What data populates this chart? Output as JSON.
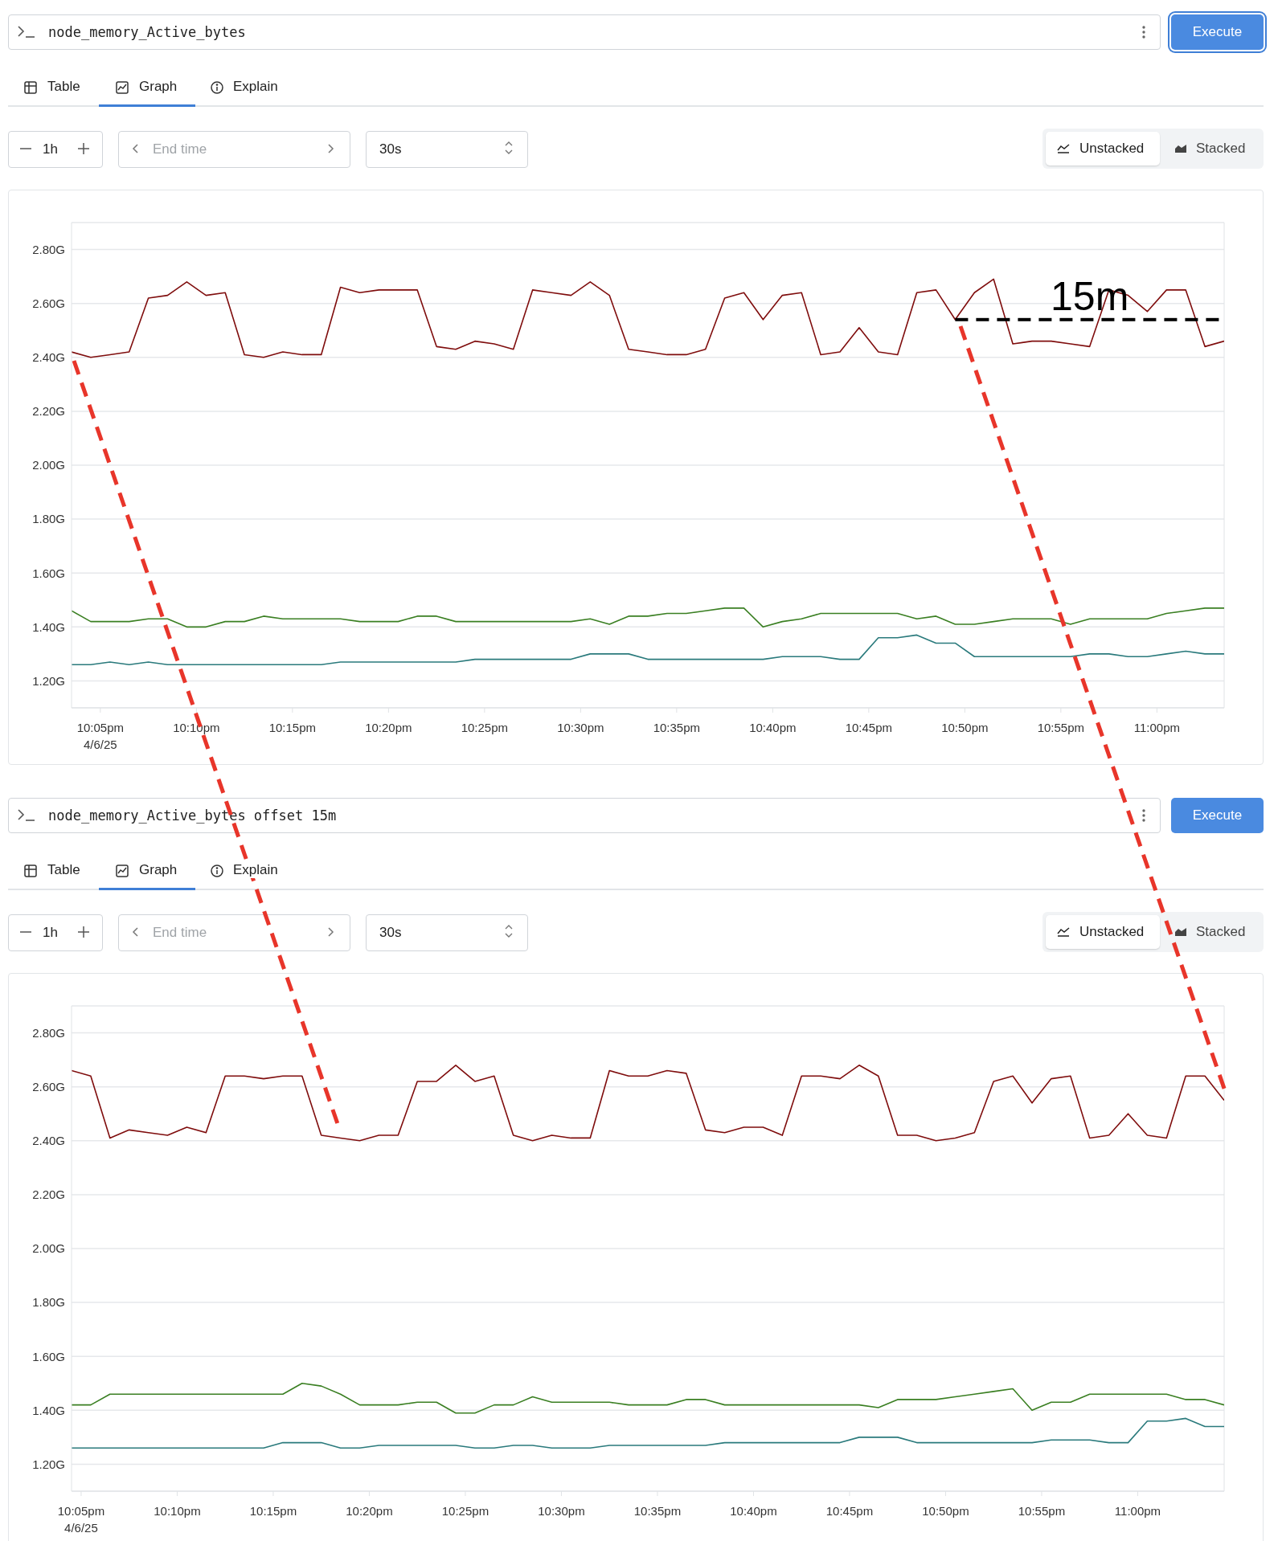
{
  "chart_data": [
    {
      "type": "line",
      "grid": "y",
      "line_style": "solid",
      "annotations": [
        "node_memory_Active_bytes",
        "Execute",
        "Table",
        "Graph",
        "Explain",
        "1h",
        "End time",
        "30s",
        "Unstacked",
        "Stacked",
        {
          "text": "15m",
          "x": "--04-06T22:49:30",
          "y": 2.54
        }
      ],
      "x": [
        "--04-06T22:03:30",
        "--04-06T22:04:30",
        "--04-06T22:05:30",
        "--04-06T22:06:30",
        "--04-06T22:07:30",
        "--04-06T22:08:30",
        "--04-06T22:09:30",
        "--04-06T22:10:30",
        "--04-06T22:11:30",
        "--04-06T22:12:30",
        "--04-06T22:13:30",
        "--04-06T22:14:30",
        "--04-06T22:15:30",
        "--04-06T22:16:30",
        "--04-06T22:17:30",
        "--04-06T22:18:30",
        "--04-06T22:19:30",
        "--04-06T22:20:30",
        "--04-06T22:21:30",
        "--04-06T22:22:30",
        "--04-06T22:23:30",
        "--04-06T22:24:30",
        "--04-06T22:25:30",
        "--04-06T22:26:30",
        "--04-06T22:27:30",
        "--04-06T22:28:30",
        "--04-06T22:29:30",
        "--04-06T22:30:30",
        "--04-06T22:31:30",
        "--04-06T22:32:30",
        "--04-06T22:33:30",
        "--04-06T22:34:30",
        "--04-06T22:35:30",
        "--04-06T22:36:30",
        "--04-06T22:37:30",
        "--04-06T22:38:30",
        "--04-06T22:39:30",
        "--04-06T22:40:30",
        "--04-06T22:41:30",
        "--04-06T22:42:30",
        "--04-06T22:43:30",
        "--04-06T22:44:30",
        "--04-06T22:45:30",
        "--04-06T22:46:30",
        "--04-06T22:47:30",
        "--04-06T22:48:30",
        "--04-06T22:49:30",
        "--04-06T22:50:30",
        "--04-06T22:51:30",
        "--04-06T22:52:30",
        "--04-06T22:53:30",
        "--04-06T22:54:30",
        "--04-06T22:55:30",
        "--04-06T22:56:30",
        "--04-06T22:57:30",
        "--04-06T22:58:30",
        "--04-06T22:59:30",
        "--04-06T23:00:30",
        "--04-06T23:01:30",
        "--04-06T23:02:30",
        "--04-06T23:03:30"
      ],
      "series": [
        {
          "color": "#7f0d0d",
          "values": [
            2.42,
            2.4,
            2.41,
            2.42,
            2.62,
            2.63,
            2.68,
            2.63,
            2.64,
            2.41,
            2.4,
            2.42,
            2.41,
            2.41,
            2.66,
            2.64,
            2.65,
            2.65,
            2.65,
            2.44,
            2.43,
            2.46,
            2.45,
            2.43,
            2.65,
            2.64,
            2.63,
            2.68,
            2.63,
            2.43,
            2.42,
            2.41,
            2.41,
            2.43,
            2.62,
            2.64,
            2.54,
            2.63,
            2.64,
            2.41,
            2.42,
            2.51,
            2.42,
            2.41,
            2.64,
            2.65,
            2.54,
            2.64,
            2.69,
            2.45,
            2.46,
            2.46,
            2.45,
            2.44,
            2.65,
            2.63,
            2.57,
            2.65,
            2.65,
            2.44,
            2.46
          ]
        },
        {
          "color": "#3a7f22",
          "values": [
            1.46,
            1.42,
            1.42,
            1.42,
            1.43,
            1.43,
            1.4,
            1.4,
            1.42,
            1.42,
            1.44,
            1.43,
            1.43,
            1.43,
            1.43,
            1.42,
            1.42,
            1.42,
            1.44,
            1.44,
            1.42,
            1.42,
            1.42,
            1.42,
            1.42,
            1.42,
            1.42,
            1.43,
            1.41,
            1.44,
            1.44,
            1.45,
            1.45,
            1.46,
            1.47,
            1.47,
            1.4,
            1.42,
            1.43,
            1.45,
            1.45,
            1.45,
            1.45,
            1.45,
            1.43,
            1.44,
            1.41,
            1.41,
            1.42,
            1.43,
            1.43,
            1.43,
            1.41,
            1.43,
            1.43,
            1.43,
            1.43,
            1.45,
            1.46,
            1.47,
            1.47
          ]
        },
        {
          "color": "#2a7a7c",
          "values": [
            1.26,
            1.26,
            1.27,
            1.26,
            1.27,
            1.26,
            1.26,
            1.26,
            1.26,
            1.26,
            1.26,
            1.26,
            1.26,
            1.26,
            1.27,
            1.27,
            1.27,
            1.27,
            1.27,
            1.27,
            1.27,
            1.28,
            1.28,
            1.28,
            1.28,
            1.28,
            1.28,
            1.3,
            1.3,
            1.3,
            1.28,
            1.28,
            1.28,
            1.28,
            1.28,
            1.28,
            1.28,
            1.29,
            1.29,
            1.29,
            1.28,
            1.28,
            1.36,
            1.36,
            1.37,
            1.34,
            1.34,
            1.29,
            1.29,
            1.29,
            1.29,
            1.29,
            1.29,
            1.3,
            1.3,
            1.29,
            1.29,
            1.3,
            1.31,
            1.3,
            1.3
          ]
        }
      ],
      "xlim": [
        "--04-06T22:03:30",
        "--04-06T23:03:30"
      ],
      "xticks": [
        {
          "value": "--04-06T22:05",
          "label": "10:05pm\n4/6/25"
        },
        {
          "value": "--04-06T22:10",
          "label": "10:10pm"
        },
        {
          "value": "--04-06T22:15",
          "label": "10:15pm"
        },
        {
          "value": "--04-06T22:20",
          "label": "10:20pm"
        },
        {
          "value": "--04-06T22:25",
          "label": "10:25pm"
        },
        {
          "value": "--04-06T22:30",
          "label": "10:30pm"
        },
        {
          "value": "--04-06T22:35",
          "label": "10:35pm"
        },
        {
          "value": "--04-06T22:40",
          "label": "10:40pm"
        },
        {
          "value": "--04-06T22:45",
          "label": "10:45pm"
        },
        {
          "value": "--04-06T22:50",
          "label": "10:50pm"
        },
        {
          "value": "--04-06T22:55",
          "label": "10:55pm"
        },
        {
          "value": "--04-06T23:00",
          "label": "11:00pm"
        }
      ],
      "ylim": [
        1.1,
        2.9
      ],
      "yticks": [
        {
          "value": 1.2,
          "label": "1.20G"
        },
        {
          "value": 1.4,
          "label": "1.40G"
        },
        {
          "value": 1.6,
          "label": "1.60G"
        },
        {
          "value": 1.8,
          "label": "1.80G"
        },
        {
          "value": 2.0,
          "label": "2.00G"
        },
        {
          "value": 2.2,
          "label": "2.20G"
        },
        {
          "value": 2.4,
          "label": "2.40G"
        },
        {
          "value": 2.6,
          "label": "2.60G"
        },
        {
          "value": 2.8,
          "label": "2.80G"
        }
      ]
    },
    {
      "type": "line",
      "grid": "y",
      "line_style": "solid",
      "annotations": [
        "node_memory_Active_bytes offset 15m",
        "Execute",
        "Table",
        "Graph",
        "Explain",
        "1h",
        "End time",
        "30s",
        "Unstacked",
        "Stacked"
      ],
      "x": [
        "--04-06T22:04:30",
        "--04-06T22:05:30",
        "--04-06T22:06:30",
        "--04-06T22:07:30",
        "--04-06T22:08:30",
        "--04-06T22:09:30",
        "--04-06T22:10:30",
        "--04-06T22:11:30",
        "--04-06T22:12:30",
        "--04-06T22:13:30",
        "--04-06T22:14:30",
        "--04-06T22:15:30",
        "--04-06T22:16:30",
        "--04-06T22:17:30",
        "--04-06T22:18:30",
        "--04-06T22:19:30",
        "--04-06T22:20:30",
        "--04-06T22:21:30",
        "--04-06T22:22:30",
        "--04-06T22:23:30",
        "--04-06T22:24:30",
        "--04-06T22:25:30",
        "--04-06T22:26:30",
        "--04-06T22:27:30",
        "--04-06T22:28:30",
        "--04-06T22:29:30",
        "--04-06T22:30:30",
        "--04-06T22:31:30",
        "--04-06T22:32:30",
        "--04-06T22:33:30",
        "--04-06T22:34:30",
        "--04-06T22:35:30",
        "--04-06T22:36:30",
        "--04-06T22:37:30",
        "--04-06T22:38:30",
        "--04-06T22:39:30",
        "--04-06T22:40:30",
        "--04-06T22:41:30",
        "--04-06T22:42:30",
        "--04-06T22:43:30",
        "--04-06T22:44:30",
        "--04-06T22:45:30",
        "--04-06T22:46:30",
        "--04-06T22:47:30",
        "--04-06T22:48:30",
        "--04-06T22:49:30",
        "--04-06T22:50:30",
        "--04-06T22:51:30",
        "--04-06T22:52:30",
        "--04-06T22:53:30",
        "--04-06T22:54:30",
        "--04-06T22:55:30",
        "--04-06T22:56:30",
        "--04-06T22:57:30",
        "--04-06T22:58:30",
        "--04-06T22:59:30",
        "--04-06T23:00:30",
        "--04-06T23:01:30",
        "--04-06T23:02:30",
        "--04-06T23:03:30",
        "--04-06T23:04:30"
      ],
      "series": [
        {
          "color": "#7f0d0d",
          "values": [
            2.66,
            2.64,
            2.41,
            2.44,
            2.43,
            2.42,
            2.45,
            2.43,
            2.64,
            2.64,
            2.63,
            2.64,
            2.64,
            2.42,
            2.41,
            2.4,
            2.42,
            2.42,
            2.62,
            2.62,
            2.68,
            2.62,
            2.64,
            2.42,
            2.4,
            2.42,
            2.41,
            2.41,
            2.66,
            2.64,
            2.64,
            2.66,
            2.65,
            2.44,
            2.43,
            2.45,
            2.45,
            2.42,
            2.64,
            2.64,
            2.63,
            2.68,
            2.64,
            2.42,
            2.42,
            2.4,
            2.41,
            2.43,
            2.62,
            2.64,
            2.54,
            2.63,
            2.64,
            2.41,
            2.42,
            2.5,
            2.42,
            2.41,
            2.64,
            2.64,
            2.55
          ]
        },
        {
          "color": "#3a7f22",
          "values": [
            1.42,
            1.42,
            1.46,
            1.46,
            1.46,
            1.46,
            1.46,
            1.46,
            1.46,
            1.46,
            1.46,
            1.46,
            1.5,
            1.49,
            1.46,
            1.42,
            1.42,
            1.42,
            1.43,
            1.43,
            1.39,
            1.39,
            1.42,
            1.42,
            1.45,
            1.43,
            1.43,
            1.43,
            1.43,
            1.42,
            1.42,
            1.42,
            1.44,
            1.44,
            1.42,
            1.42,
            1.42,
            1.42,
            1.42,
            1.42,
            1.42,
            1.42,
            1.41,
            1.44,
            1.44,
            1.44,
            1.45,
            1.46,
            1.47,
            1.48,
            1.4,
            1.43,
            1.43,
            1.46,
            1.46,
            1.46,
            1.46,
            1.46,
            1.44,
            1.44,
            1.42
          ]
        },
        {
          "color": "#2a7a7c",
          "values": [
            1.26,
            1.26,
            1.26,
            1.26,
            1.26,
            1.26,
            1.26,
            1.26,
            1.26,
            1.26,
            1.26,
            1.28,
            1.28,
            1.28,
            1.26,
            1.26,
            1.27,
            1.27,
            1.27,
            1.27,
            1.27,
            1.26,
            1.26,
            1.27,
            1.27,
            1.26,
            1.26,
            1.26,
            1.27,
            1.27,
            1.27,
            1.27,
            1.27,
            1.27,
            1.28,
            1.28,
            1.28,
            1.28,
            1.28,
            1.28,
            1.28,
            1.3,
            1.3,
            1.3,
            1.28,
            1.28,
            1.28,
            1.28,
            1.28,
            1.28,
            1.28,
            1.29,
            1.29,
            1.29,
            1.28,
            1.28,
            1.36,
            1.36,
            1.37,
            1.34,
            1.34
          ]
        }
      ],
      "xlim": [
        "--04-06T22:04:30",
        "--04-06T23:04:30"
      ],
      "xticks": [
        {
          "value": "--04-06T22:05",
          "label": "10:05pm\n4/6/25"
        },
        {
          "value": "--04-06T22:10",
          "label": "10:10pm"
        },
        {
          "value": "--04-06T22:15",
          "label": "10:15pm"
        },
        {
          "value": "--04-06T22:20",
          "label": "10:20pm"
        },
        {
          "value": "--04-06T22:25",
          "label": "10:25pm"
        },
        {
          "value": "--04-06T22:30",
          "label": "10:30pm"
        },
        {
          "value": "--04-06T22:35",
          "label": "10:35pm"
        },
        {
          "value": "--04-06T22:40",
          "label": "10:40pm"
        },
        {
          "value": "--04-06T22:45",
          "label": "10:45pm"
        },
        {
          "value": "--04-06T22:50",
          "label": "10:50pm"
        },
        {
          "value": "--04-06T22:55",
          "label": "10:55pm"
        },
        {
          "value": "--04-06T23:00",
          "label": "11:00pm"
        }
      ],
      "ylim": [
        1.1,
        2.9
      ],
      "yticks": [
        {
          "value": 1.2,
          "label": "1.20G"
        },
        {
          "value": 1.4,
          "label": "1.40G"
        },
        {
          "value": 1.6,
          "label": "1.60G"
        },
        {
          "value": 1.8,
          "label": "1.80G"
        },
        {
          "value": 2.0,
          "label": "2.00G"
        },
        {
          "value": 2.2,
          "label": "2.20G"
        },
        {
          "value": 2.4,
          "label": "2.40G"
        },
        {
          "value": 2.6,
          "label": "2.60G"
        },
        {
          "value": 2.8,
          "label": "2.80G"
        }
      ]
    }
  ]
}
